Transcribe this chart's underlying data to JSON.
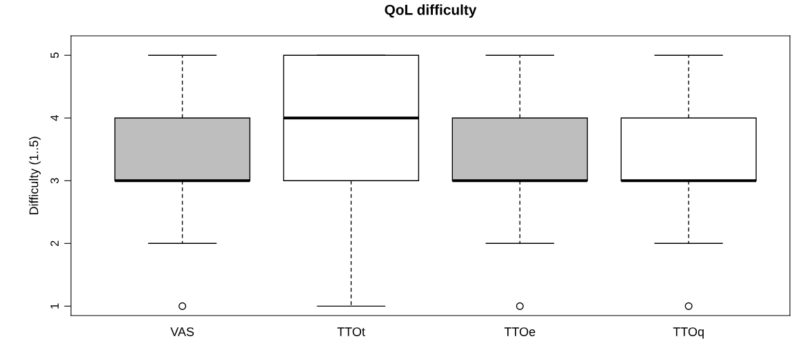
{
  "chart_data": {
    "type": "box",
    "title": "QoL difficulty",
    "ylabel": "Difficulty (1..5)",
    "categories": [
      "VAS",
      "TTOt",
      "TTOe",
      "TTOq"
    ],
    "colors": [
      "#bebebe",
      "#ffffff",
      "#bebebe",
      "#ffffff"
    ],
    "boxes": [
      {
        "low": 2,
        "q1": 3,
        "median": 3,
        "q3": 4,
        "high": 5,
        "outliers": [
          1
        ]
      },
      {
        "low": 1,
        "q1": 3,
        "median": 4,
        "q3": 5,
        "high": 5
      },
      {
        "low": 2,
        "q1": 3,
        "median": 3,
        "q3": 4,
        "high": 5,
        "outliers": [
          1
        ]
      },
      {
        "low": 2,
        "q1": 3,
        "median": 3,
        "q3": 4,
        "high": 5,
        "outliers": [
          1
        ]
      }
    ],
    "ylim": [
      0.85,
      5.31
    ],
    "yticks": [
      1,
      2,
      3,
      4,
      5
    ],
    "grid": false,
    "legend": false
  }
}
